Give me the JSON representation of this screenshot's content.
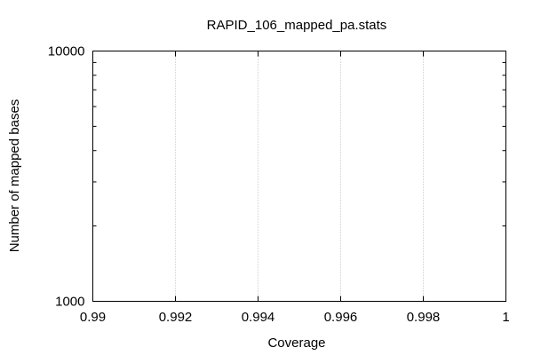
{
  "chart_data": {
    "type": "line",
    "title": "RAPID_106_mapped_pa.stats",
    "xlabel": "Coverage",
    "ylabel": "Number of mapped bases",
    "xlim": [
      0.99,
      1
    ],
    "ylim": [
      1000,
      10000
    ],
    "yscale": "log",
    "x_ticks": [
      "0.99",
      "0.992",
      "0.994",
      "0.996",
      "0.998",
      "1"
    ],
    "y_ticks": [
      "1000",
      "10000"
    ],
    "grid": "vertical-dotted",
    "series": []
  }
}
